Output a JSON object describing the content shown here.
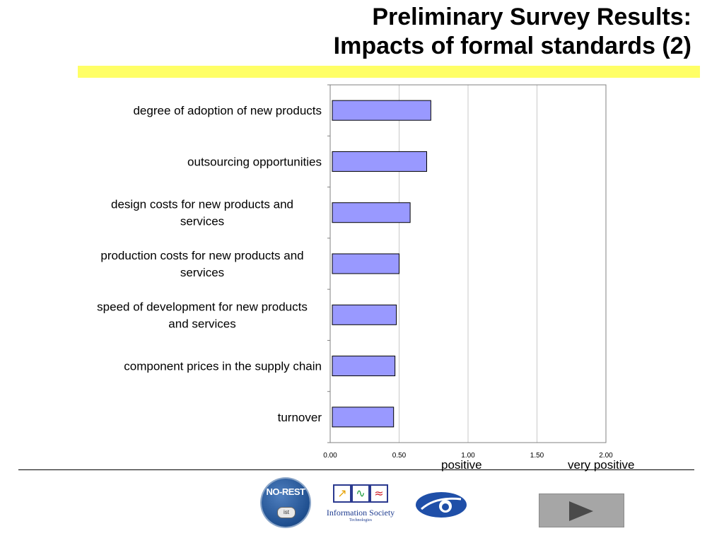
{
  "slide": {
    "title_line1": "Preliminary Survey Results:",
    "title_line2": "Impacts of formal standards (2)",
    "accent_color": "#ffff66"
  },
  "chart_data": {
    "type": "bar",
    "orientation": "horizontal",
    "categories": [
      "degree of adoption of new products",
      "outsourcing opportunities",
      "design costs for new products and services",
      "production costs for new products and services",
      "speed of development for new products and services",
      "component prices in the supply chain",
      "turnover"
    ],
    "category_label_lines": [
      [
        "degree of adoption of new products"
      ],
      [
        "outsourcing opportunities"
      ],
      [
        "design costs for new products and",
        "services"
      ],
      [
        "production costs for new products and",
        "services"
      ],
      [
        "speed of development for new products",
        "and services"
      ],
      [
        "component prices in the supply chain"
      ],
      [
        "turnover"
      ]
    ],
    "values": [
      0.73,
      0.7,
      0.58,
      0.5,
      0.48,
      0.47,
      0.46
    ],
    "xlim": [
      0,
      2
    ],
    "x_ticks": [
      "0.00",
      "0.50",
      "1.00",
      "1.50",
      "2.00"
    ],
    "x_scale_labels": [
      "positive",
      "very positive"
    ],
    "grid": "vertical",
    "bar_color": "#9999ff",
    "bar_border": "#000000",
    "legend": "none"
  },
  "footer": {
    "logos": [
      "no-rest-logo",
      "information-society-logo",
      "fp6-logo"
    ],
    "norest_text": "NO-REST",
    "norest_badge": "ist",
    "is_line1": "Information Society",
    "is_line2": "Technologies",
    "next_button_icon": "play-arrow-icon"
  }
}
